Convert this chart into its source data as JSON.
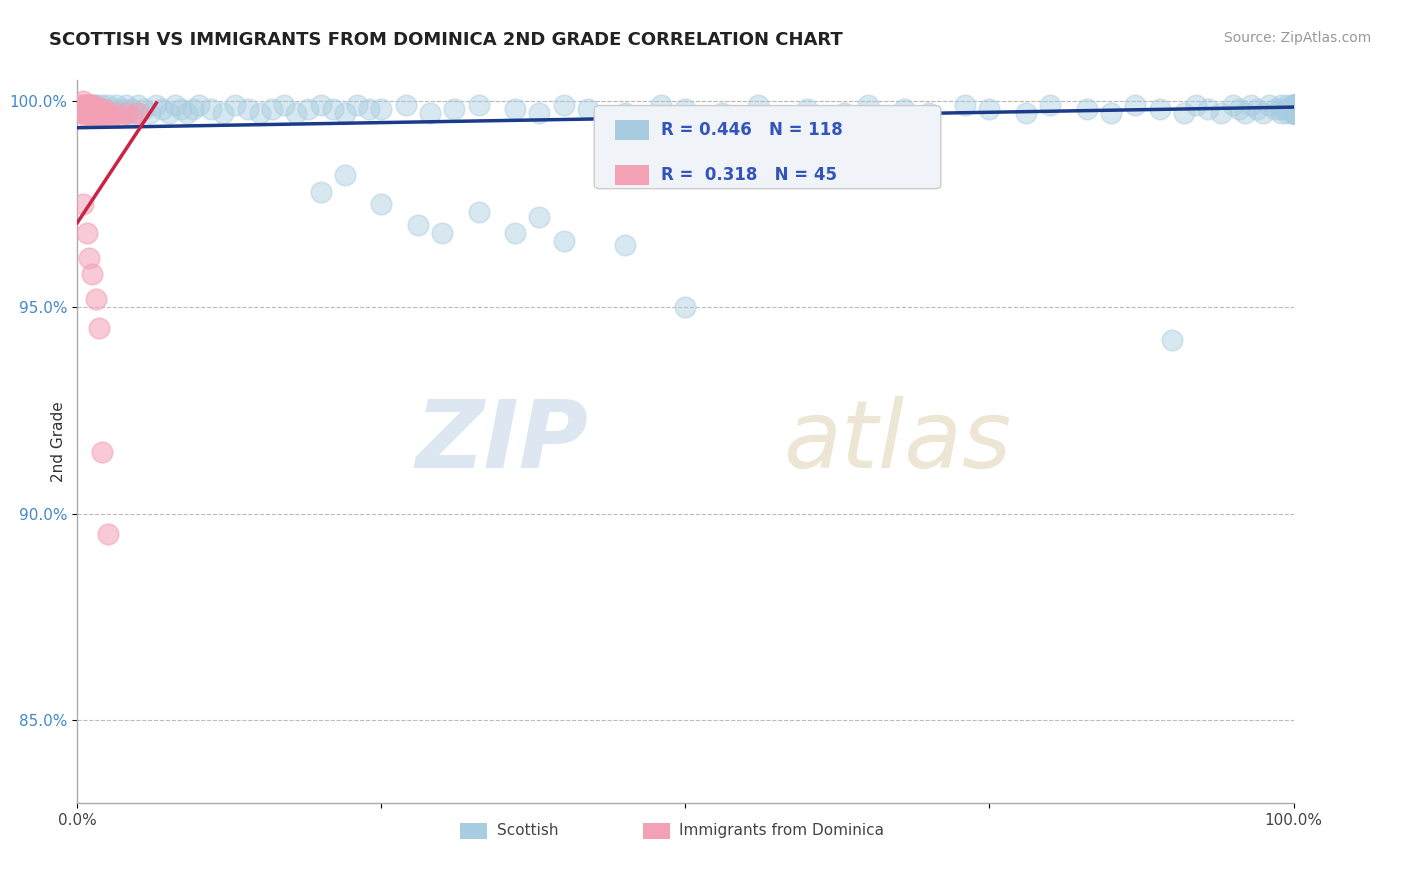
{
  "title": "SCOTTISH VS IMMIGRANTS FROM DOMINICA 2ND GRADE CORRELATION CHART",
  "source": "Source: ZipAtlas.com",
  "ylabel": "2nd Grade",
  "legend_label_blue": "Scottish",
  "legend_label_pink": "Immigrants from Dominica",
  "R_blue": 0.446,
  "N_blue": 118,
  "R_pink": 0.318,
  "N_pink": 45,
  "color_blue": "#a8cce0",
  "color_pink": "#f4a0b5",
  "color_blue_line": "#1a3a8a",
  "color_pink_line": "#cc2244",
  "watermark_zip": "ZIP",
  "watermark_atlas": "atlas",
  "xlim": [
    0.0,
    1.0
  ],
  "ylim": [
    0.83,
    1.005
  ],
  "yticks": [
    0.85,
    0.9,
    0.95,
    1.0
  ],
  "ytick_labels": [
    "85.0%",
    "90.0%",
    "95.0%",
    "100.0%"
  ],
  "blue_trend_x0": 0.0,
  "blue_trend_x1": 1.0,
  "blue_trend_y0": 0.9935,
  "blue_trend_y1": 0.9985,
  "pink_trend_x0": 0.0,
  "pink_trend_x1": 0.065,
  "pink_trend_y0": 0.9705,
  "pink_trend_y1": 0.9995,
  "blue_scatter_x": [
    0.005,
    0.007,
    0.008,
    0.01,
    0.012,
    0.013,
    0.014,
    0.015,
    0.016,
    0.017,
    0.018,
    0.019,
    0.02,
    0.021,
    0.022,
    0.025,
    0.027,
    0.03,
    0.032,
    0.035,
    0.038,
    0.04,
    0.042,
    0.045,
    0.048,
    0.05,
    0.055,
    0.06,
    0.065,
    0.07,
    0.075,
    0.08,
    0.085,
    0.09,
    0.095,
    0.1,
    0.11,
    0.12,
    0.13,
    0.14,
    0.15,
    0.16,
    0.17,
    0.18,
    0.19,
    0.2,
    0.21,
    0.22,
    0.23,
    0.24,
    0.25,
    0.27,
    0.29,
    0.31,
    0.33,
    0.36,
    0.38,
    0.4,
    0.42,
    0.45,
    0.48,
    0.5,
    0.53,
    0.56,
    0.6,
    0.63,
    0.65,
    0.68,
    0.7,
    0.73,
    0.75,
    0.78,
    0.8,
    0.83,
    0.85,
    0.87,
    0.89,
    0.91,
    0.92,
    0.93,
    0.94,
    0.95,
    0.955,
    0.96,
    0.965,
    0.97,
    0.975,
    0.98,
    0.985,
    0.99,
    0.99,
    0.99,
    0.995,
    0.995,
    0.995,
    1.0,
    1.0,
    1.0,
    1.0,
    1.0,
    1.0,
    1.0,
    1.0,
    1.0,
    1.0,
    1.0,
    1.0,
    1.0,
    1.0,
    1.0,
    1.0,
    1.0,
    1.0,
    1.0,
    1.0,
    1.0,
    1.0,
    1.0
  ],
  "blue_scatter_y": [
    0.998,
    0.997,
    0.999,
    0.998,
    0.997,
    0.999,
    0.998,
    0.997,
    0.999,
    0.998,
    0.997,
    0.998,
    0.999,
    0.997,
    0.998,
    0.999,
    0.997,
    0.998,
    0.999,
    0.997,
    0.998,
    0.999,
    0.997,
    0.998,
    0.997,
    0.999,
    0.998,
    0.997,
    0.999,
    0.998,
    0.997,
    0.999,
    0.998,
    0.997,
    0.998,
    0.999,
    0.998,
    0.997,
    0.999,
    0.998,
    0.997,
    0.998,
    0.999,
    0.997,
    0.998,
    0.999,
    0.998,
    0.997,
    0.999,
    0.998,
    0.998,
    0.999,
    0.997,
    0.998,
    0.999,
    0.998,
    0.997,
    0.999,
    0.998,
    0.997,
    0.999,
    0.998,
    0.997,
    0.999,
    0.998,
    0.997,
    0.999,
    0.998,
    0.997,
    0.999,
    0.998,
    0.997,
    0.999,
    0.998,
    0.997,
    0.999,
    0.998,
    0.997,
    0.999,
    0.998,
    0.997,
    0.999,
    0.998,
    0.997,
    0.999,
    0.998,
    0.997,
    0.999,
    0.998,
    0.997,
    0.999,
    0.998,
    0.997,
    0.999,
    0.998,
    0.997,
    0.999,
    0.998,
    0.997,
    0.999,
    0.998,
    0.997,
    0.999,
    0.998,
    0.997,
    0.999,
    0.998,
    0.997,
    0.999,
    0.998,
    0.997,
    0.999,
    0.998,
    0.997,
    0.999,
    0.998,
    0.997,
    0.999
  ],
  "blue_outlier_x": [
    0.2,
    0.22,
    0.25,
    0.28,
    0.3,
    0.33,
    0.36,
    0.38,
    0.4,
    0.45,
    0.5,
    0.9
  ],
  "blue_outlier_y": [
    0.978,
    0.982,
    0.975,
    0.97,
    0.968,
    0.973,
    0.968,
    0.972,
    0.966,
    0.965,
    0.95,
    0.942
  ],
  "pink_scatter_x": [
    0.003,
    0.004,
    0.005,
    0.005,
    0.006,
    0.006,
    0.007,
    0.007,
    0.008,
    0.008,
    0.009,
    0.009,
    0.01,
    0.01,
    0.011,
    0.011,
    0.012,
    0.012,
    0.013,
    0.013,
    0.014,
    0.015,
    0.015,
    0.016,
    0.017,
    0.018,
    0.019,
    0.02,
    0.021,
    0.022,
    0.025,
    0.028,
    0.03,
    0.035,
    0.04,
    0.045,
    0.05
  ],
  "pink_scatter_y": [
    0.999,
    0.998,
    1.0,
    0.997,
    0.999,
    0.998,
    0.997,
    0.999,
    0.998,
    0.996,
    0.997,
    0.999,
    0.998,
    0.997,
    0.996,
    0.999,
    0.998,
    0.997,
    0.996,
    0.999,
    0.998,
    0.997,
    0.996,
    0.998,
    0.997,
    0.996,
    0.998,
    0.997,
    0.996,
    0.998,
    0.997,
    0.996,
    0.997,
    0.996,
    0.997,
    0.996,
    0.997
  ],
  "pink_outlier_x": [
    0.005,
    0.008,
    0.01,
    0.012,
    0.015,
    0.018,
    0.02,
    0.025
  ],
  "pink_outlier_y": [
    0.975,
    0.968,
    0.962,
    0.958,
    0.952,
    0.945,
    0.915,
    0.895
  ]
}
